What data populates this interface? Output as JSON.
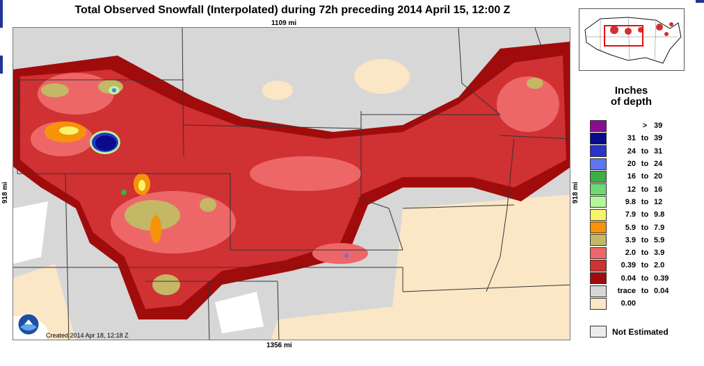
{
  "title": "Total Observed Snowfall (Interpolated) during 72h preceding 2014 April 15, 12:00 Z",
  "distances": {
    "top": "1109 mi",
    "bottom": "1356 mi",
    "left": "918 mi",
    "right": "918 mi"
  },
  "created": "Created 2014 Apr 18, 12:18 Z",
  "logo_text": "NOAA",
  "legend": {
    "title_line1": "Inches",
    "title_line2": "of depth",
    "items": [
      {
        "lo": "",
        "to": ">",
        "hi": "39",
        "color": "#8b0d8d"
      },
      {
        "lo": "31",
        "to": "to",
        "hi": "39",
        "color": "#0a0a8a"
      },
      {
        "lo": "24",
        "to": "to",
        "hi": "31",
        "color": "#2a34c8"
      },
      {
        "lo": "20",
        "to": "to",
        "hi": "24",
        "color": "#5f74ef"
      },
      {
        "lo": "16",
        "to": "to",
        "hi": "20",
        "color": "#3cae46"
      },
      {
        "lo": "12",
        "to": "to",
        "hi": "16",
        "color": "#6fd874"
      },
      {
        "lo": "9.8",
        "to": "to",
        "hi": "12",
        "color": "#b7f79b"
      },
      {
        "lo": "7.9",
        "to": "to",
        "hi": "9.8",
        "color": "#f6f46a"
      },
      {
        "lo": "5.9",
        "to": "to",
        "hi": "7.9",
        "color": "#f7930b"
      },
      {
        "lo": "3.9",
        "to": "to",
        "hi": "5.9",
        "color": "#c4b765"
      },
      {
        "lo": "2.0",
        "to": "to",
        "hi": "3.9",
        "color": "#ee6768"
      },
      {
        "lo": "0.39",
        "to": "to",
        "hi": "2.0",
        "color": "#d03133"
      },
      {
        "lo": "0.04",
        "to": "to",
        "hi": "0.39",
        "color": "#a00c0c"
      },
      {
        "lo": "trace",
        "to": "to",
        "hi": "0.04",
        "color": "#d7d7d7"
      },
      {
        "lo": "0.00",
        "to": "",
        "hi": "",
        "color": "#fbe6c6"
      }
    ],
    "not_estimated": "Not Estimated"
  }
}
